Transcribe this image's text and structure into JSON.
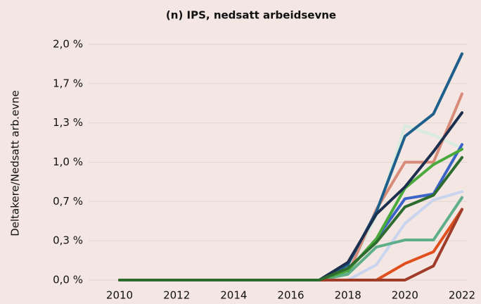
{
  "chart_data": {
    "type": "line",
    "title": "(n) IPS, nedsatt arbeidsevne",
    "y_label": "Deltakere/Nedsatt arb.evne",
    "x": [
      2010,
      2011,
      2012,
      2013,
      2014,
      2015,
      2016,
      2017,
      2018,
      2019,
      2020,
      2021,
      2022
    ],
    "xlim": [
      2010,
      2022
    ],
    "xticks": [
      2010,
      2012,
      2014,
      2016,
      2018,
      2020,
      2022
    ],
    "ylim": [
      0,
      2.0
    ],
    "yticks": [
      {
        "value": 0,
        "label": "0,0 %"
      },
      {
        "value": 0.333,
        "label": "0,3 %"
      },
      {
        "value": 0.667,
        "label": "0,7 %"
      },
      {
        "value": 1.0,
        "label": "1,0 %"
      },
      {
        "value": 1.333,
        "label": "1,3 %"
      },
      {
        "value": 1.667,
        "label": "1,7 %"
      },
      {
        "value": 2.0,
        "label": "2,0 %"
      }
    ],
    "grid": true,
    "series": [
      {
        "color": "#d7ebdf",
        "values": [
          0,
          0,
          0,
          0,
          0,
          0,
          0,
          0,
          0.05,
          0.55,
          1.31,
          1.23,
          1.12
        ]
      },
      {
        "color": "#c9d5ef",
        "values": [
          0,
          0,
          0,
          0,
          0,
          0,
          0,
          0,
          0,
          0.13,
          0.48,
          0.68,
          0.75
        ]
      },
      {
        "color": "#d98b7a",
        "values": [
          0,
          0,
          0,
          0,
          0,
          0,
          0,
          0,
          0.05,
          0.6,
          1.0,
          1.0,
          1.58
        ]
      },
      {
        "color": "#1f5f8b",
        "values": [
          0,
          0,
          0,
          0,
          0,
          0,
          0,
          0,
          0.13,
          0.58,
          1.22,
          1.41,
          1.92
        ]
      },
      {
        "color": "#5fae8a",
        "values": [
          0,
          0,
          0,
          0,
          0,
          0,
          0,
          0,
          0.05,
          0.28,
          0.34,
          0.34,
          0.7
        ]
      },
      {
        "color": "#3c64c8",
        "values": [
          0,
          0,
          0,
          0,
          0,
          0,
          0,
          0,
          0.08,
          0.35,
          0.69,
          0.73,
          1.15
        ]
      },
      {
        "color": "#4aaa3c",
        "values": [
          0,
          0,
          0,
          0,
          0,
          0,
          0,
          0,
          0.08,
          0.35,
          0.78,
          0.98,
          1.11
        ]
      },
      {
        "color": "#1c2f4f",
        "values": [
          0,
          0,
          0,
          0,
          0,
          0,
          0,
          0,
          0.15,
          0.56,
          0.79,
          1.09,
          1.42
        ]
      },
      {
        "color": "#e0501e",
        "values": [
          0,
          0,
          0,
          0,
          0,
          0,
          0,
          0,
          0,
          0,
          0.14,
          0.24,
          0.6
        ]
      },
      {
        "color": "#a03c2a",
        "values": [
          0,
          0,
          0,
          0,
          0,
          0,
          0,
          0,
          0,
          0,
          0,
          0.12,
          0.6
        ]
      },
      {
        "color": "#2e6b2e",
        "values": [
          0,
          0,
          0,
          0,
          0,
          0,
          0,
          0,
          0.1,
          0.32,
          0.62,
          0.72,
          1.04
        ]
      }
    ]
  }
}
